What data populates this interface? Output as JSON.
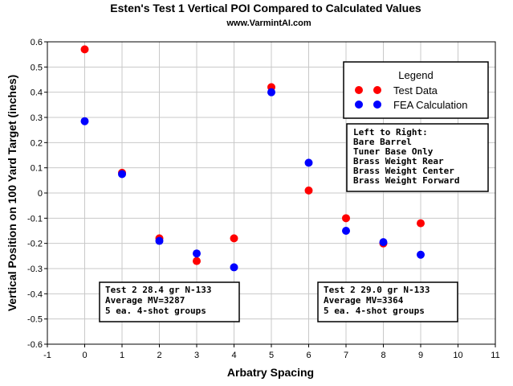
{
  "chart_data": {
    "type": "scatter",
    "title": "Esten's Test 1 Vertical POI Compared to Calculated Values",
    "subtitle": "www.VarmintAI.com",
    "xlabel": "Arbatry Spacing",
    "ylabel": "Vertical Position on 100 Yard Target (inches)",
    "xlim": [
      -1,
      11
    ],
    "ylim": [
      -0.6,
      0.6
    ],
    "x_ticks": [
      "-1",
      "0",
      "1",
      "2",
      "3",
      "4",
      "5",
      "6",
      "7",
      "8",
      "9",
      "10",
      "11"
    ],
    "y_ticks": [
      "0.6",
      "0.5",
      "0.4",
      "0.3",
      "0.2",
      "0.1",
      "0",
      "-0.1",
      "-0.2",
      "-0.3",
      "-0.4",
      "-0.5",
      "-0.6"
    ],
    "grid": true,
    "legend": {
      "title": "Legend",
      "placement": "top-right",
      "entries": [
        "Test Data",
        "FEA Calculation"
      ]
    },
    "series": [
      {
        "name": "Test Data",
        "color": "#ff0000",
        "points": [
          [
            0,
            0.57
          ],
          [
            1,
            0.08
          ],
          [
            2,
            -0.18
          ],
          [
            3,
            -0.27
          ],
          [
            4,
            -0.18
          ],
          [
            5,
            0.42
          ],
          [
            6,
            0.01
          ],
          [
            7,
            -0.1
          ],
          [
            8,
            -0.2
          ],
          [
            9,
            -0.12
          ]
        ]
      },
      {
        "name": "FEA Calculation",
        "color": "#0000ff",
        "points": [
          [
            0,
            0.285
          ],
          [
            1,
            0.075
          ],
          [
            2,
            -0.19
          ],
          [
            3,
            -0.24
          ],
          [
            4,
            -0.295
          ],
          [
            5,
            0.4
          ],
          [
            6,
            0.12
          ],
          [
            7,
            -0.15
          ],
          [
            8,
            -0.195
          ],
          [
            9,
            -0.245
          ]
        ]
      }
    ],
    "annotations": [
      {
        "lines": [
          "Left to Right:",
          "Bare Barrel",
          "Tuner Base Only",
          "Brass Weight Rear",
          "Brass Weight Center",
          "Brass Weight Forward"
        ]
      },
      {
        "lines": [
          "Test 2 28.4 gr N-133",
          "Average MV=3287",
          "5 ea. 4-shot groups"
        ]
      },
      {
        "lines": [
          "Test 2 29.0 gr N-133",
          "Average MV=3364",
          "5 ea. 4-shot groups"
        ]
      }
    ]
  }
}
